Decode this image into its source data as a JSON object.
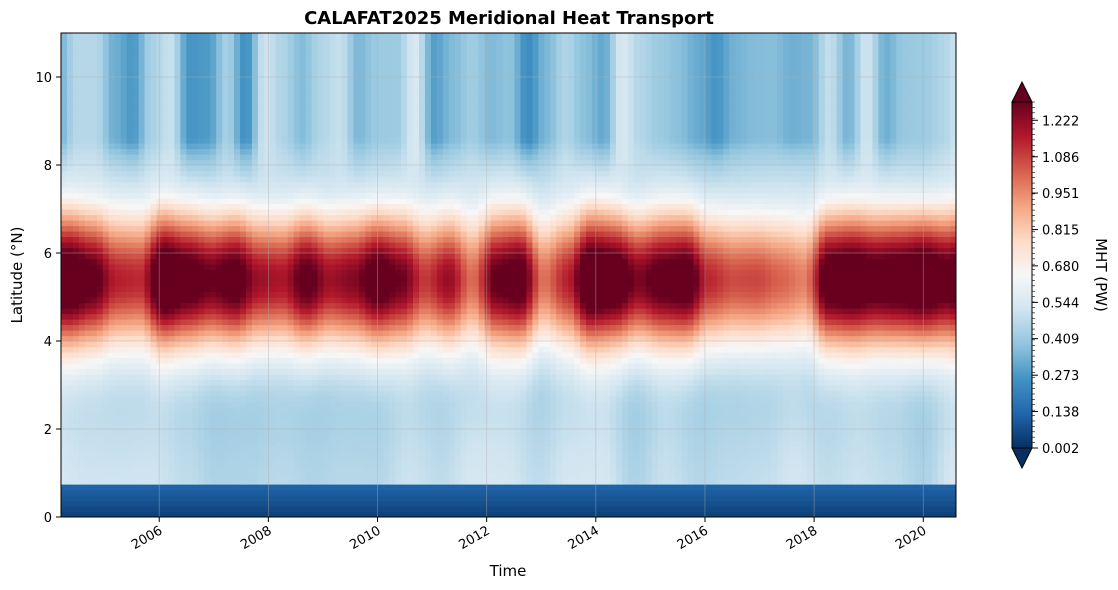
{
  "chart_data": {
    "type": "heatmap",
    "subtype": "filled-contour",
    "title": "CALAFAT2025 Meridional Heat Transport",
    "xlabel": "Time",
    "ylabel": "Latitude (°N)",
    "xlim": [
      2004.2,
      2020.6
    ],
    "ylim": [
      0,
      11
    ],
    "x_ticks": [
      {
        "value": 2006,
        "label": "2006"
      },
      {
        "value": 2008,
        "label": "2008"
      },
      {
        "value": 2010,
        "label": "2010"
      },
      {
        "value": 2012,
        "label": "2012"
      },
      {
        "value": 2014,
        "label": "2014"
      },
      {
        "value": 2016,
        "label": "2016"
      },
      {
        "value": 2018,
        "label": "2018"
      },
      {
        "value": 2020,
        "label": "2020"
      }
    ],
    "y_ticks": [
      {
        "value": 0,
        "label": "0"
      },
      {
        "value": 2,
        "label": "2"
      },
      {
        "value": 4,
        "label": "4"
      },
      {
        "value": 6,
        "label": "6"
      },
      {
        "value": 8,
        "label": "8"
      },
      {
        "value": 10,
        "label": "10"
      }
    ],
    "grid": true,
    "colorbar": {
      "label": "MHT (PW)",
      "cmap": "RdBu_r",
      "range": [
        0.002,
        1.29
      ],
      "extend": "both",
      "tick_values": [
        0.002,
        0.138,
        0.273,
        0.409,
        0.544,
        0.68,
        0.815,
        0.951,
        1.086,
        1.222
      ],
      "tick_labels": [
        "0.002",
        "0.138",
        "0.273",
        "0.409",
        "0.544",
        "0.680",
        "0.815",
        "0.951",
        "1.086",
        "1.222"
      ]
    },
    "latitude_bands_pw": {
      "lat_0_to_0.7": 0.05,
      "lat_1_to_3": 0.55,
      "lat_4_to_7": 1.1,
      "lat_8_to_11": 0.25
    }
  },
  "colors": {
    "c0": "#053061",
    "c1": "#2166ac",
    "c2": "#4393c3",
    "c3": "#92c5de",
    "c4": "#d1e5f0",
    "c5": "#f7f7f7",
    "c6": "#fddbc7",
    "c7": "#f4a582",
    "c8": "#d6604d",
    "c9": "#b2182b",
    "c10": "#67001f"
  }
}
